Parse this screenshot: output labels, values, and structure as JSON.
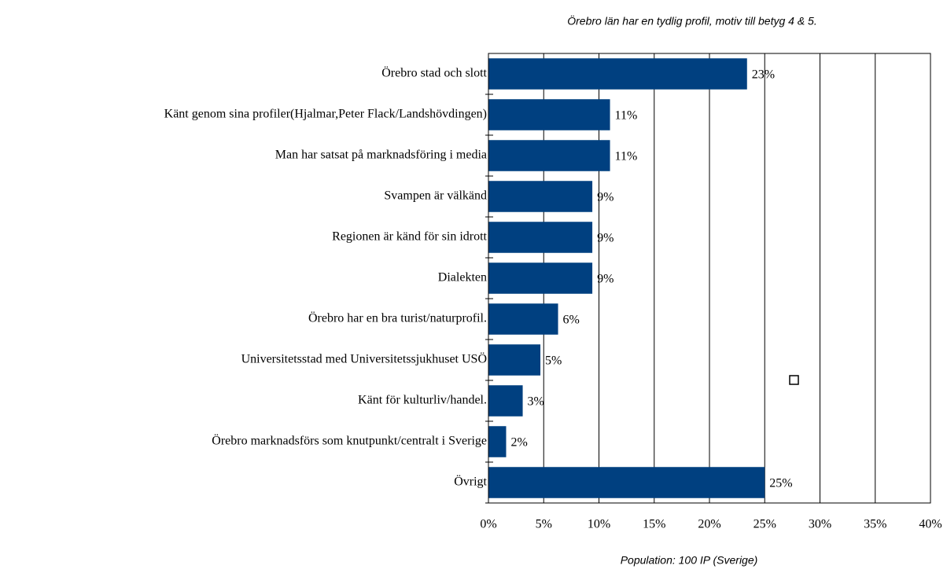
{
  "chart_data": {
    "type": "bar",
    "orientation": "horizontal",
    "title": "Örebro län har en tydlig profil, motiv till betyg 4 & 5.",
    "footnote": "Population: 100 IP (Sverige)",
    "categories": [
      "Örebro stad och slott",
      "Känt genom sina profiler(Hjalmar,Peter Flack/Landshövdingen)",
      "Man har satsat på marknadsföring i media",
      "Svampen är välkänd",
      "Regionen är känd för sin idrott",
      "Dialekten",
      "Örebro har en bra turist/naturprofil.",
      "Universitetsstad med Universitetssjukhuset USÖ",
      "Känt för kulturliv/handel.",
      "Örebro marknadsförs som knutpunkt/centralt i Sverige",
      "Övrigt"
    ],
    "values": [
      23.4,
      11,
      11,
      9.4,
      9.4,
      9.4,
      6.3,
      4.7,
      3.1,
      1.6,
      25
    ],
    "value_labels": [
      "23%",
      "11%",
      "11%",
      "9%",
      "9%",
      "9%",
      "6%",
      "5%",
      "3%",
      "2%",
      "25%"
    ],
    "color": "#004080",
    "xlim": [
      0,
      40
    ],
    "xticks": [
      {
        "value": 0,
        "label": "0%"
      },
      {
        "value": 5,
        "label": "5%"
      },
      {
        "value": 10,
        "label": "10%"
      },
      {
        "value": 15,
        "label": "15%"
      },
      {
        "value": 20,
        "label": "20%"
      },
      {
        "value": 25,
        "label": "25%"
      },
      {
        "value": 30,
        "label": "30%"
      },
      {
        "value": 35,
        "label": "35%"
      },
      {
        "value": 40,
        "label": "40%"
      }
    ],
    "grid": true
  }
}
